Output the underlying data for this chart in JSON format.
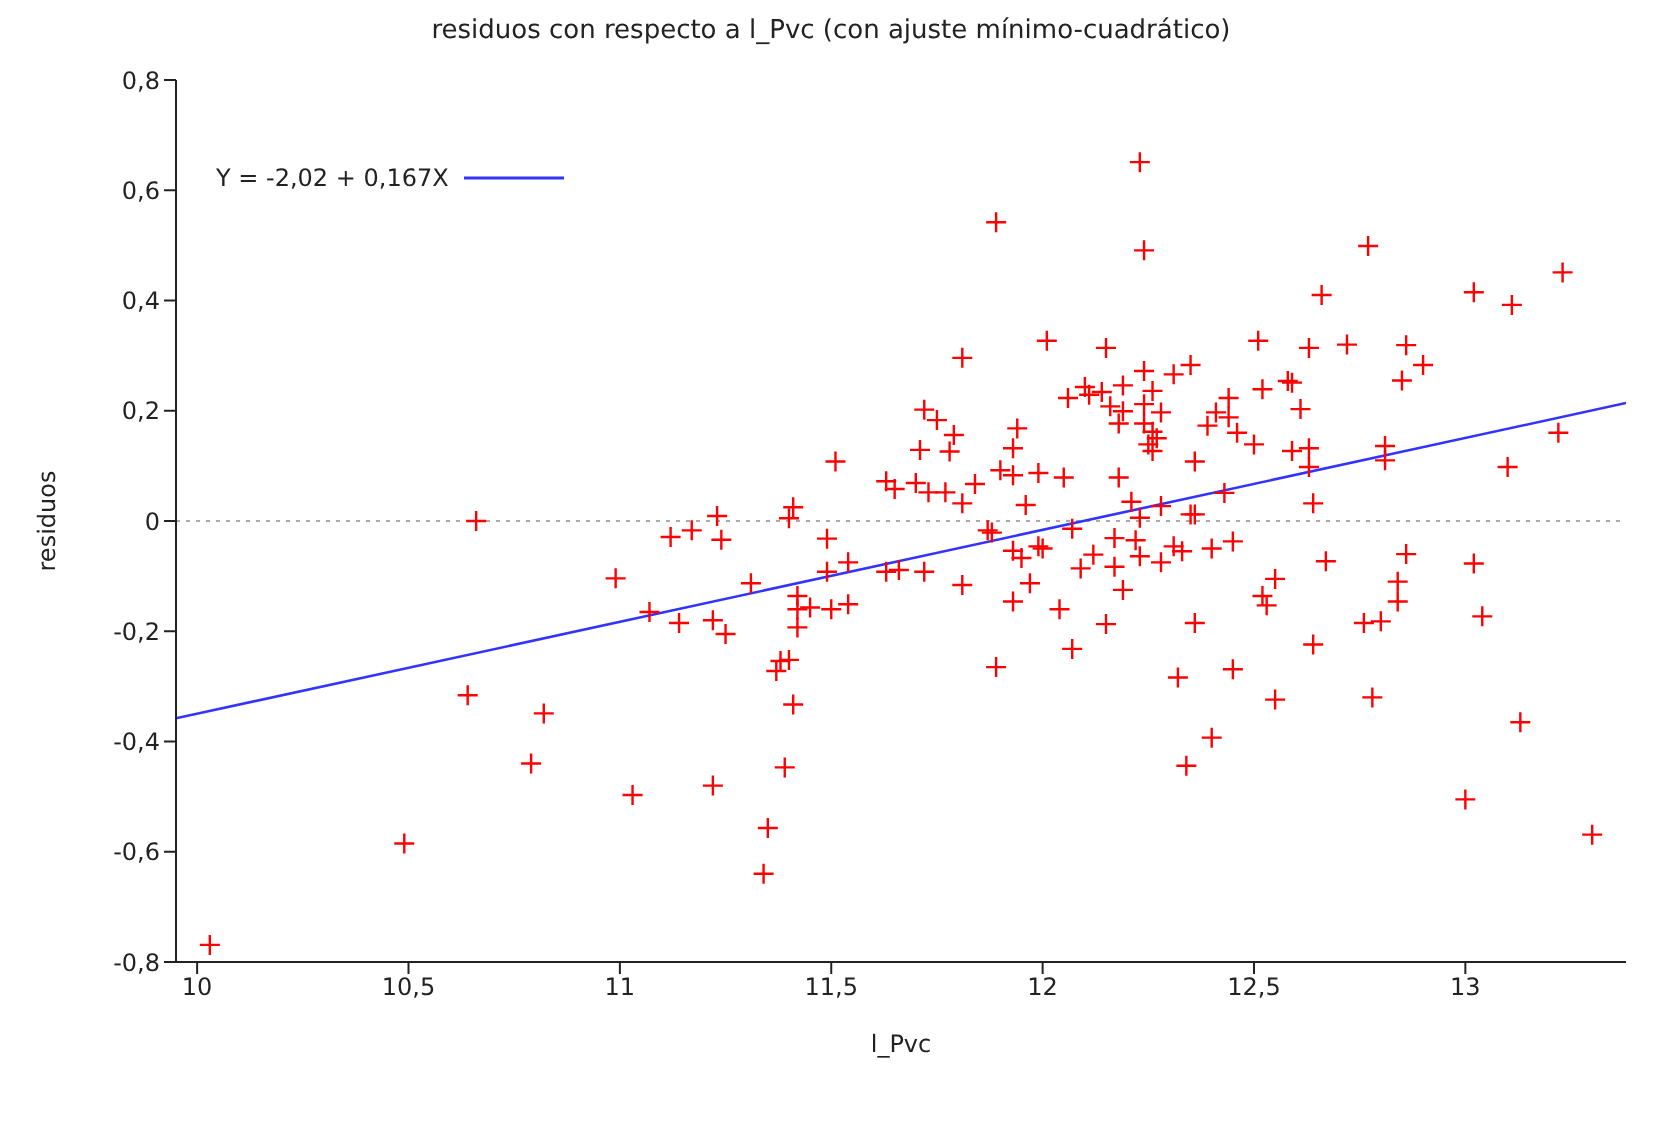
{
  "chart_data": {
    "type": "scatter",
    "title": "residuos con respecto a l_Pvc (con ajuste mínimo-cuadrático)",
    "xlabel": "l_Pvc",
    "ylabel": "residuos",
    "xlim": [
      9.95,
      13.38
    ],
    "xticks": [
      10,
      {
        "value": 10.5,
        "label": "10,5"
      },
      11,
      {
        "value": 11.5,
        "label": "11,5"
      },
      12,
      {
        "value": 12.5,
        "label": "12,5"
      },
      13
    ],
    "ylim": [
      -0.8,
      0.8
    ],
    "yticks": [
      {
        "value": -0.8,
        "label": "-0,8"
      },
      {
        "value": -0.6,
        "label": "-0,6"
      },
      {
        "value": -0.4,
        "label": "-0,4"
      },
      {
        "value": -0.2,
        "label": "-0,2"
      },
      0,
      {
        "value": 0.2,
        "label": "0,2"
      },
      {
        "value": 0.4,
        "label": "0,4"
      },
      {
        "value": 0.6,
        "label": "0,6"
      },
      {
        "value": 0.8,
        "label": "0,8"
      }
    ],
    "grid": false,
    "legend": "top left",
    "ref_lines": [
      {
        "axis": "y",
        "value": 0,
        "color": "#aaaaaa",
        "line_style": "dotted"
      }
    ],
    "series": [
      {
        "marker": "cross",
        "color": "#ff0000",
        "x": [
          10.03,
          10.66,
          10.99,
          11.07,
          10.64,
          10.82,
          10.79,
          11.03,
          10.49,
          11.81,
          11.72,
          11.75,
          11.79,
          11.71,
          11.78,
          11.51,
          11.63,
          11.65,
          11.7,
          11.73,
          11.77,
          11.81,
          11.41,
          11.4,
          11.23,
          11.12,
          11.17,
          11.24,
          11.49,
          11.49,
          11.54,
          11.63,
          11.66,
          11.72,
          11.81,
          11.31,
          11.14,
          11.22,
          11.25,
          11.42,
          11.42,
          11.45,
          11.5,
          11.54,
          11.42,
          11.4,
          11.38,
          11.37,
          11.41,
          11.39,
          11.22,
          11.35,
          11.34,
          12.23,
          11.89,
          12.24,
          12.01,
          12.15,
          12.24,
          12.31,
          12.35,
          12.1,
          12.11,
          12.06,
          12.14,
          12.19,
          12.16,
          12.19,
          12.18,
          12.24,
          12.26,
          12.28,
          12.24,
          12.26,
          12.27,
          12.25,
          12.26,
          11.94,
          11.93,
          11.9,
          11.93,
          11.99,
          12.05,
          12.18,
          12.36,
          11.84,
          11.96,
          12.21,
          12.28,
          12.23,
          12.35,
          12.36,
          11.87,
          11.88,
          12.07,
          11.93,
          11.95,
          11.99,
          12.0,
          12.17,
          12.22,
          12.12,
          12.09,
          12.17,
          12.23,
          12.28,
          12.31,
          12.33,
          11.97,
          11.93,
          12.19,
          12.04,
          12.15,
          12.36,
          12.07,
          11.89,
          12.32,
          12.34,
          12.77,
          13.23,
          13.02,
          13.11,
          12.66,
          12.51,
          12.63,
          12.72,
          12.86,
          12.9,
          12.85,
          12.58,
          12.59,
          12.52,
          12.44,
          12.41,
          12.44,
          12.39,
          12.46,
          12.5,
          12.61,
          12.59,
          12.63,
          12.63,
          12.64,
          12.43,
          12.81,
          12.81,
          13.22,
          13.1,
          12.4,
          12.45,
          12.67,
          12.55,
          12.52,
          12.53,
          12.86,
          12.84,
          12.84,
          13.02,
          13.04,
          12.76,
          12.8,
          12.64,
          12.45,
          12.55,
          12.78,
          13.13,
          12.4,
          13.0,
          13.3
        ],
        "values": [
          -0.769,
          0,
          -0.104,
          -0.165,
          -0.316,
          -0.349,
          -0.44,
          -0.497,
          -0.585,
          0.296,
          0.202,
          0.183,
          0.156,
          0.129,
          0.126,
          0.108,
          0.072,
          0.058,
          0.069,
          0.052,
          0.052,
          0.032,
          0.025,
          0.005,
          0.009,
          -0.029,
          -0.017,
          -0.034,
          -0.032,
          -0.092,
          -0.075,
          -0.092,
          -0.089,
          -0.092,
          -0.116,
          -0.113,
          -0.185,
          -0.18,
          -0.205,
          -0.136,
          -0.16,
          -0.157,
          -0.16,
          -0.151,
          -0.193,
          -0.252,
          -0.254,
          -0.272,
          -0.333,
          -0.447,
          -0.48,
          -0.557,
          -0.64,
          0.651,
          0.542,
          0.491,
          0.327,
          0.314,
          0.272,
          0.266,
          0.283,
          0.243,
          0.229,
          0.223,
          0.234,
          0.246,
          0.208,
          0.199,
          0.177,
          0.212,
          0.236,
          0.197,
          0.177,
          0.162,
          0.15,
          0.139,
          0.127,
          0.168,
          0.132,
          0.092,
          0.083,
          0.087,
          0.079,
          0.079,
          0.108,
          0.067,
          0.029,
          0.035,
          0.027,
          0.006,
          0.012,
          0.012,
          -0.017,
          -0.021,
          -0.014,
          -0.054,
          -0.067,
          -0.046,
          -0.05,
          -0.031,
          -0.035,
          -0.061,
          -0.086,
          -0.083,
          -0.064,
          -0.075,
          -0.046,
          -0.055,
          -0.113,
          -0.146,
          -0.125,
          -0.16,
          -0.187,
          -0.185,
          -0.232,
          -0.265,
          -0.284,
          -0.444,
          0.499,
          0.451,
          0.415,
          0.392,
          0.41,
          0.327,
          0.314,
          0.32,
          0.319,
          0.283,
          0.255,
          0.254,
          0.251,
          0.239,
          0.223,
          0.197,
          0.188,
          0.173,
          0.16,
          0.139,
          0.203,
          0.127,
          0.132,
          0.098,
          0.032,
          0.051,
          0.136,
          0.11,
          0.16,
          0.098,
          -0.05,
          -0.037,
          -0.073,
          -0.105,
          -0.136,
          -0.153,
          -0.06,
          -0.11,
          -0.146,
          -0.077,
          -0.173,
          -0.185,
          -0.182,
          -0.224,
          -0.269,
          -0.324,
          -0.32,
          -0.365,
          -0.393,
          -0.505,
          -0.569
        ]
      },
      {
        "type": "line",
        "name": "Y = -2,02 + 0,167X",
        "color": "#3333ff",
        "x": [
          9.95,
          13.38
        ],
        "values": [
          -0.358,
          0.214
        ]
      }
    ]
  }
}
